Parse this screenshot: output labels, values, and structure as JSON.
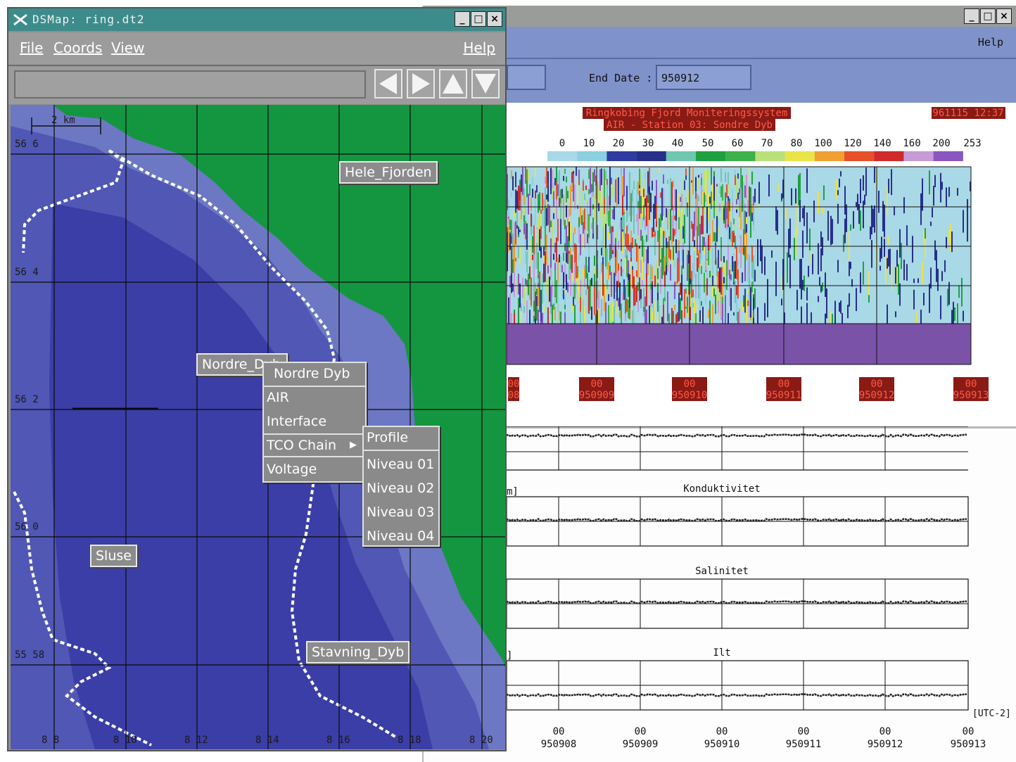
{
  "map_window": {
    "title": "DSMap: ring.dt2",
    "menu": {
      "file": "File",
      "coords": "Coords",
      "view": "View",
      "help": "Help"
    },
    "scale_label": "2 km",
    "lat_labels": [
      "56 6",
      "56 4",
      "56 2",
      "56 0",
      "55 58"
    ],
    "lon_labels": [
      "8 8",
      "8 10",
      "8 12",
      "8 14",
      "8 16",
      "8 18",
      "8 20"
    ],
    "stations": {
      "hele_fjorden": "Hele_Fjorden",
      "nordre_dyb": "Nordre_Dyb",
      "sluse": "Sluse",
      "stavning_dyb": "Stavning_Dyb"
    },
    "popup_menu": {
      "header": "Nordre Dyb",
      "items": [
        "AIR",
        "Interface",
        "TCO Chain",
        "Voltage"
      ],
      "submenu_arrow": "▶"
    },
    "submenu": {
      "header": "Profile",
      "items": [
        "Niveau 01",
        "Niveau 02",
        "Niveau 03",
        "Niveau 04"
      ]
    },
    "colors": {
      "land": "#149640",
      "water_deep": "#3b3ea6",
      "water_mid": "#5157b4",
      "water_shallow": "#6c78c4",
      "grid": "#0a0a0a"
    }
  },
  "data_window": {
    "help": "Help",
    "end_date_label": "End Date :",
    "end_date_value": "950912",
    "heatmap": {
      "title": "Ringkobing Fjord Moniteringssystem",
      "subtitle": "AIR - Station 03: Sondre Dyb",
      "timestamp": "961115 12:37",
      "scale_values": [
        "0",
        "10",
        "20",
        "30",
        "40",
        "50",
        "60",
        "70",
        "80",
        "100",
        "120",
        "140",
        "160",
        "200",
        "253"
      ],
      "scale_colors": [
        "#a9d8e6",
        "#8ccfe0",
        "#2f3ba0",
        "#26308a",
        "#6fc7b0",
        "#1fa040",
        "#3cb04a",
        "#b9e07a",
        "#e8e44a",
        "#f0a030",
        "#e8502a",
        "#d02a2a",
        "#c89ad8",
        "#8a56c0"
      ],
      "x_ticks": [
        {
          "hour": "00",
          "date": "08",
          "partial": true
        },
        {
          "hour": "00",
          "date": "950909"
        },
        {
          "hour": "00",
          "date": "950910"
        },
        {
          "hour": "00",
          "date": "950911"
        },
        {
          "hour": "00",
          "date": "950912"
        },
        {
          "hour": "00",
          "date": "950913"
        }
      ]
    },
    "timeseries": {
      "top_partial_label": "",
      "panels": [
        {
          "title": "Konduktivitet",
          "left_label": "m]"
        },
        {
          "title": "Salinitet",
          "left_label": ""
        },
        {
          "title": "Ilt",
          "left_label": "]"
        }
      ],
      "utc_label": "[UTC-2]",
      "x_ticks": [
        {
          "hour": "00",
          "date": "950908"
        },
        {
          "hour": "00",
          "date": "950909"
        },
        {
          "hour": "00",
          "date": "950910"
        },
        {
          "hour": "00",
          "date": "950911"
        },
        {
          "hour": "00",
          "date": "950912"
        },
        {
          "hour": "00",
          "date": "950913"
        }
      ]
    }
  }
}
